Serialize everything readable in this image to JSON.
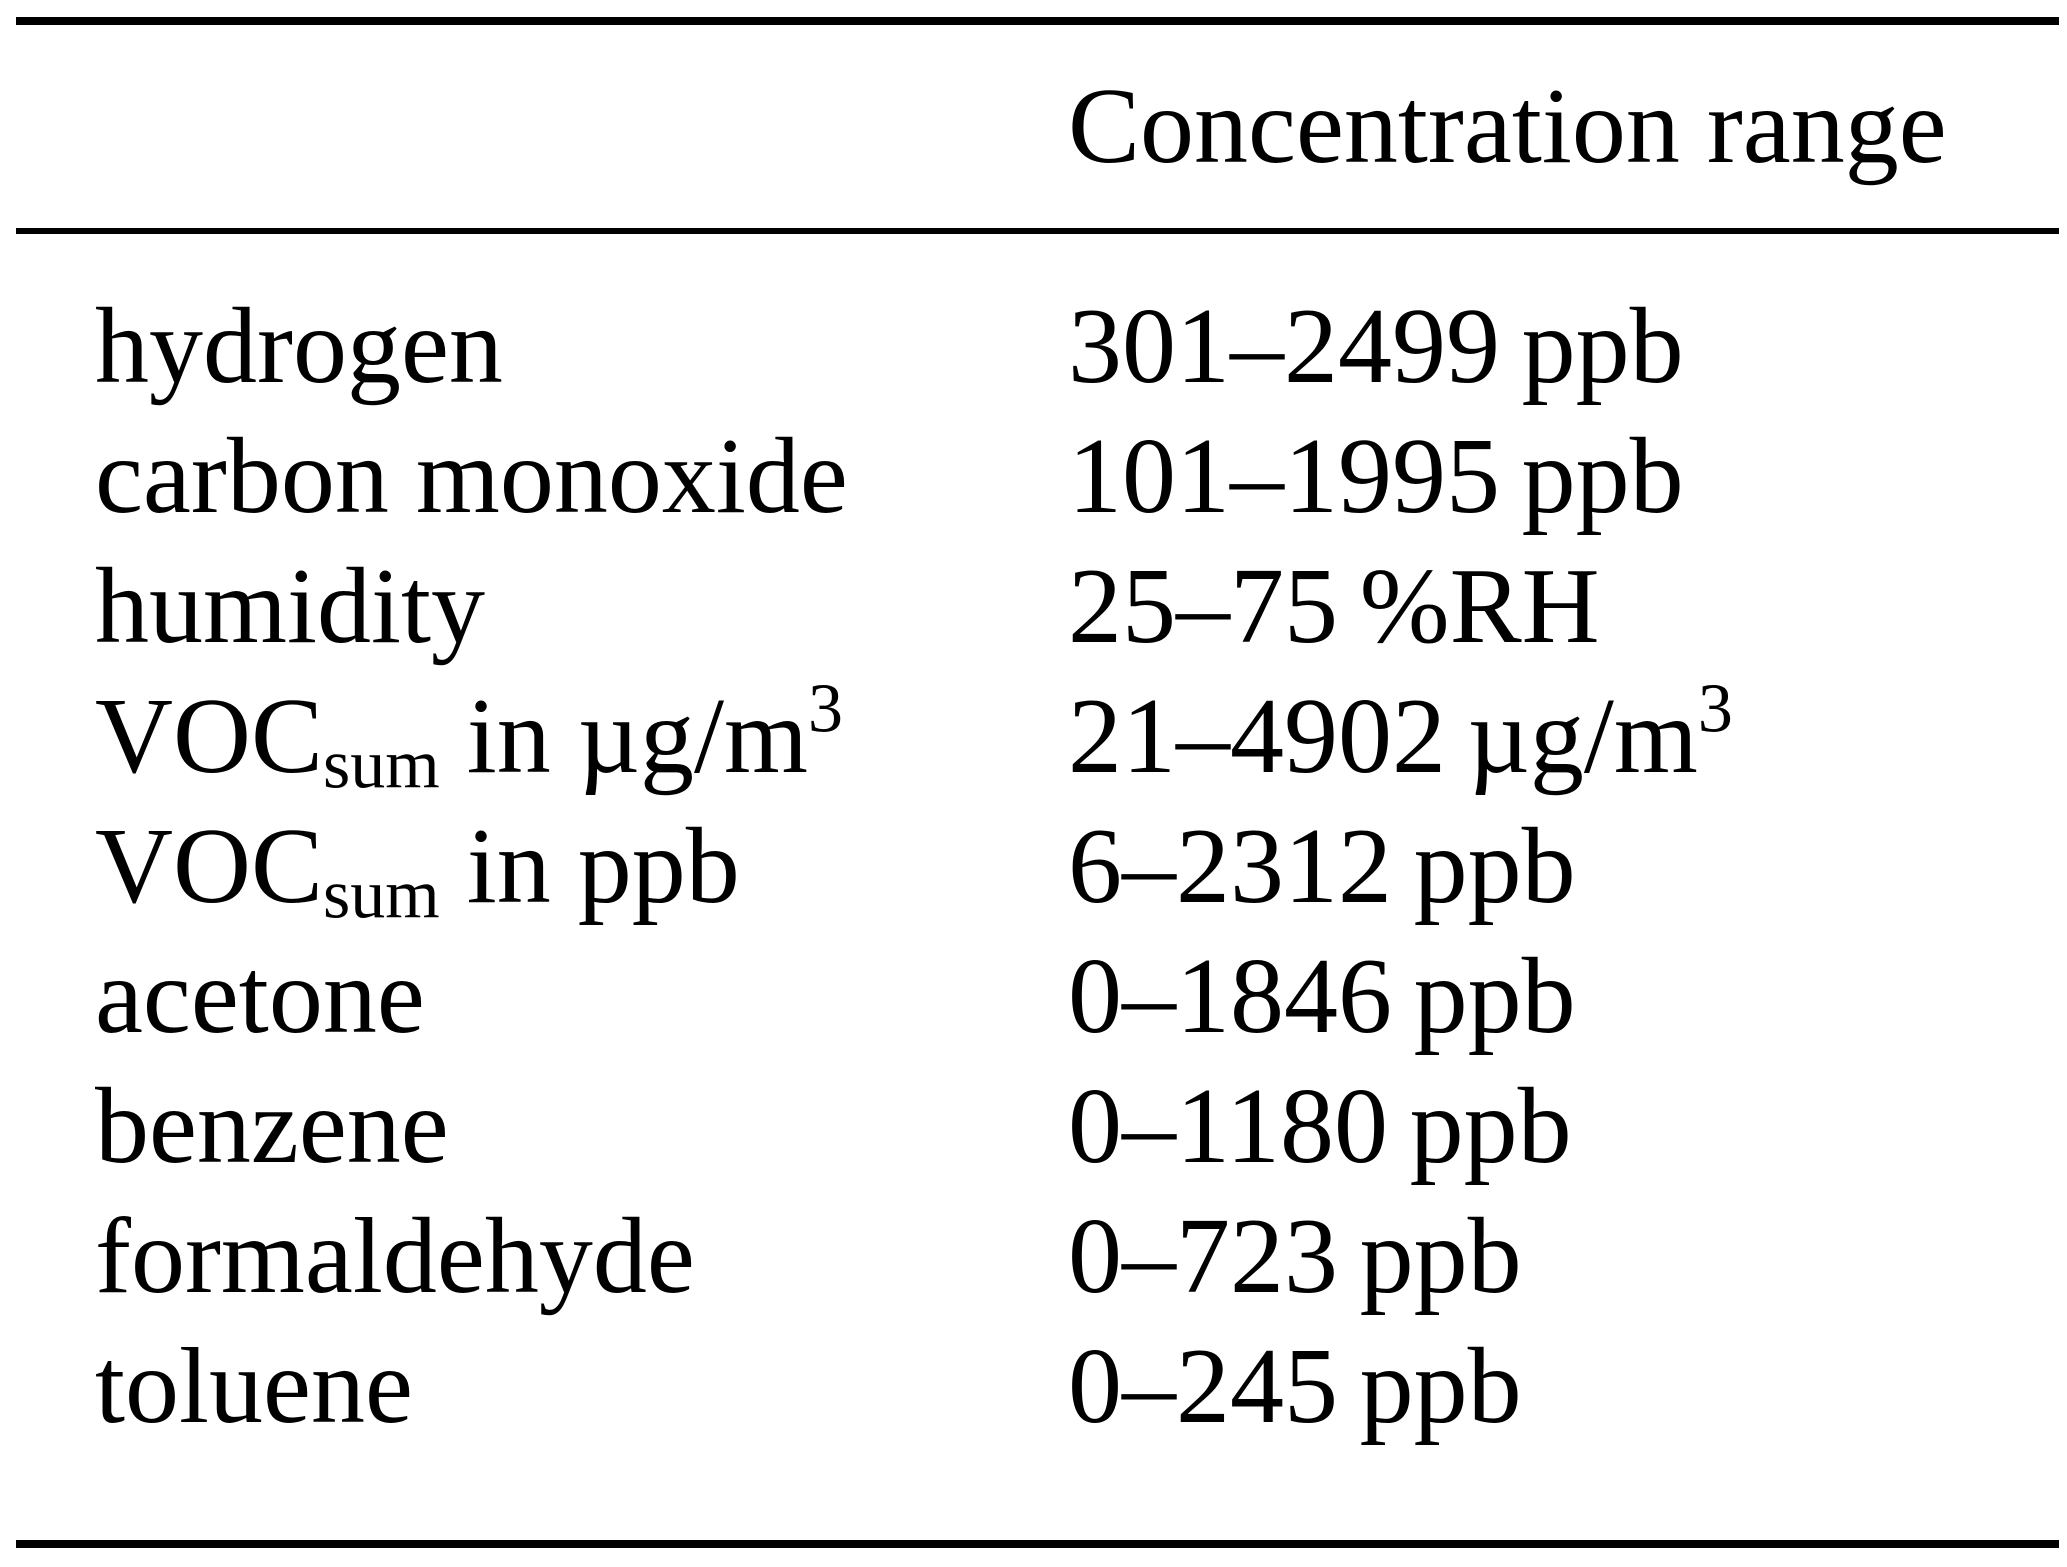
{
  "table": {
    "header": {
      "substance_label": "",
      "range_label": "Concentration range"
    },
    "rows": [
      {
        "substance": [
          [
            "hydrogen",
            "n"
          ]
        ],
        "range": [
          [
            "301–2499 ppb",
            "n"
          ]
        ]
      },
      {
        "substance": [
          [
            "carbon monoxide",
            "n"
          ]
        ],
        "range": [
          [
            "101–1995 ppb",
            "n"
          ]
        ]
      },
      {
        "substance": [
          [
            "humidity",
            "n"
          ]
        ],
        "range": [
          [
            "25–75 %RH",
            "n"
          ]
        ]
      },
      {
        "substance": [
          [
            "VOC",
            "n"
          ],
          [
            "sum",
            "sub"
          ],
          [
            " in µg/m",
            "n"
          ],
          [
            "3",
            "sup"
          ]
        ],
        "range": [
          [
            "21–4902 µg/m",
            "n"
          ],
          [
            "3",
            "sup"
          ]
        ]
      },
      {
        "substance": [
          [
            "VOC",
            "n"
          ],
          [
            "sum",
            "sub"
          ],
          [
            " in ppb",
            "n"
          ]
        ],
        "range": [
          [
            "6–2312 ppb",
            "n"
          ]
        ]
      },
      {
        "substance": [
          [
            "acetone",
            "n"
          ]
        ],
        "range": [
          [
            "0–1846 ppb",
            "n"
          ]
        ]
      },
      {
        "substance": [
          [
            "benzene",
            "n"
          ]
        ],
        "range": [
          [
            "0–1180 ppb",
            "n"
          ]
        ]
      },
      {
        "substance": [
          [
            "formaldehyde",
            "n"
          ]
        ],
        "range": [
          [
            "0–723 ppb",
            "n"
          ]
        ]
      },
      {
        "substance": [
          [
            "toluene",
            "n"
          ]
        ],
        "range": [
          [
            "0–245 ppb",
            "n"
          ]
        ]
      }
    ]
  }
}
